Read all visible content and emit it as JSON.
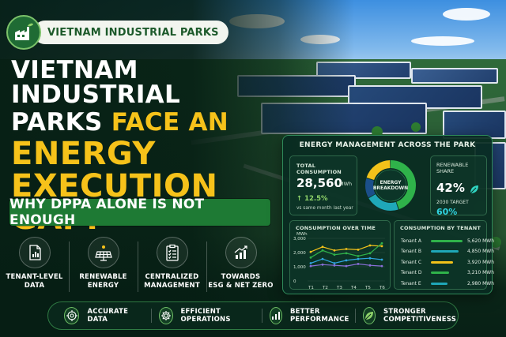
{
  "brand": {
    "label": "VIETNAM INDUSTRIAL PARKS"
  },
  "headline": {
    "line1": "VIETNAM INDUSTRIAL",
    "line2_white": "PARKS ",
    "line2_yellow": "FACE AN",
    "line3": "ENERGY",
    "line4": "EXECUTION GAP:"
  },
  "subbanner": "WHY DPPA ALONE IS NOT ENOUGH",
  "features": [
    {
      "label": "TENANT-LEVEL\nDATA",
      "icon": "tenant-data-icon"
    },
    {
      "label": "RENEWABLE\nENERGY",
      "icon": "solar-panel-icon"
    },
    {
      "label": "CENTRALIZED\nMANAGEMENT",
      "icon": "clipboard-checklist-icon"
    },
    {
      "label": "TOWARDS\nESG & NET ZERO",
      "icon": "growth-chart-icon"
    }
  ],
  "bottom_bar": [
    {
      "label": "ACCURATE DATA",
      "icon": "target-icon"
    },
    {
      "label": "EFFICIENT OPERATIONS",
      "icon": "gear-icon"
    },
    {
      "label": "BETTER\nPERFORMANCE",
      "icon": "bar-chart-icon"
    },
    {
      "label": "STRONGER\nCOMPETITIVENESS",
      "icon": "leaf-icon"
    }
  ],
  "dashboard": {
    "title": "ENERGY MANAGEMENT ACROSS THE PARK",
    "total_consumption": {
      "label": "TOTAL CONSUMPTION",
      "value": "28,560",
      "unit": "MWh",
      "change": "↑ 12.5%",
      "note": "vs same month last year"
    },
    "breakdown": {
      "label": "ENERGY\nBREAKDOWN",
      "segments": [
        {
          "color": "#2fb24a",
          "share": 0.45
        },
        {
          "color": "#1fa8b8",
          "share": 0.22
        },
        {
          "color": "#1b4f8a",
          "share": 0.13
        },
        {
          "color": "#f2c21a",
          "share": 0.2
        }
      ]
    },
    "renewable": {
      "label": "RENEWABLE\nSHARE",
      "value": "42%",
      "target_label": "2030 TARGET",
      "target_value": "60%"
    },
    "consumption_chart": {
      "title": "CONSUMPTION OVER TIME",
      "y_unit": "MWh",
      "y_ticks": [
        "3,000",
        "2,000",
        "1,000",
        "0"
      ],
      "x_ticks": [
        "T1",
        "T2",
        "T3",
        "T4",
        "T5",
        "T6"
      ],
      "series": [
        {
          "color": "#f2c21a",
          "values": [
            2050,
            2400,
            2150,
            2250,
            2200,
            2500,
            2450
          ]
        },
        {
          "color": "#2fb24a",
          "values": [
            1650,
            2150,
            1850,
            1950,
            1750,
            1950,
            2650
          ]
        },
        {
          "color": "#2fa5e0",
          "values": [
            1250,
            1550,
            1250,
            1450,
            1550,
            1600,
            1500
          ]
        },
        {
          "color": "#8a6fd8",
          "values": [
            1050,
            1150,
            1100,
            1050,
            1200,
            1100,
            1050
          ]
        }
      ]
    },
    "tenant_chart": {
      "title": "CONSUMPTION BY TENANT",
      "tenants": [
        {
          "name": "Tenant A",
          "value": "5,620 MWh",
          "amount": 5620,
          "color": "#2fb24a"
        },
        {
          "name": "Tenant B",
          "value": "4,850 MWh",
          "amount": 4850,
          "color": "#1fa8b8"
        },
        {
          "name": "Tenant C",
          "value": "3,920 MWh",
          "amount": 3920,
          "color": "#f2c21a"
        },
        {
          "name": "Tenant D",
          "value": "3,210 MWh",
          "amount": 3210,
          "color": "#2fb24a"
        },
        {
          "name": "Tenant E",
          "value": "2,980 MWh",
          "amount": 2980,
          "color": "#1fa8b8"
        }
      ]
    }
  }
}
